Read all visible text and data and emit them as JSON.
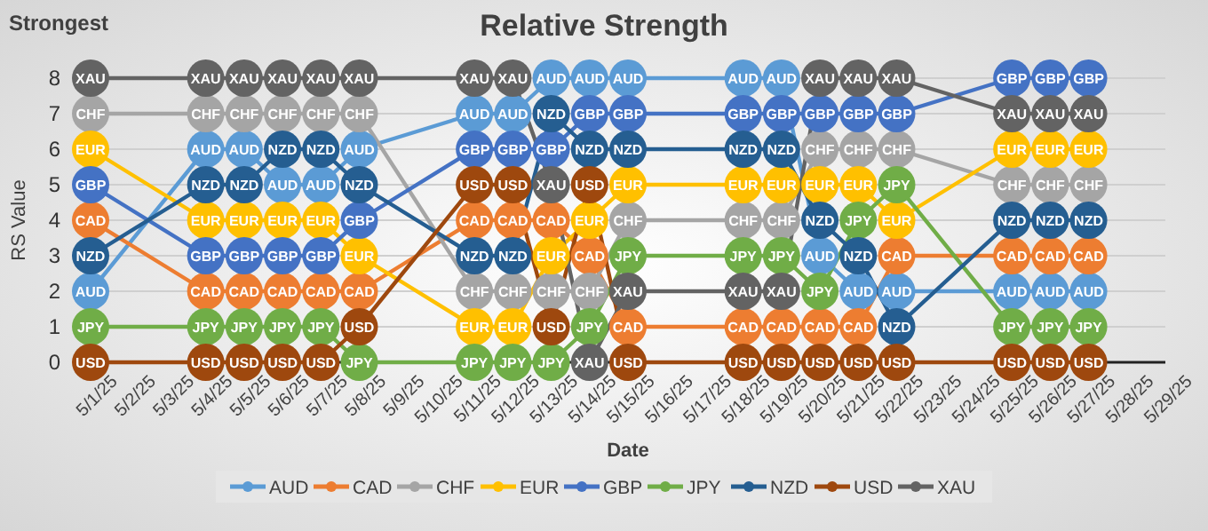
{
  "chart_data": {
    "type": "line",
    "title": "Relative Strength",
    "xlabel": "Date",
    "ylabel": "RS Value",
    "annotations": [
      "Strongest"
    ],
    "x": [
      "--05-01",
      "--05-04",
      "--05-05",
      "--05-06",
      "--05-07",
      "--05-08",
      "--05-11",
      "--05-12",
      "--05-13",
      "--05-14",
      "--05-15",
      "--05-18",
      "--05-19",
      "--05-20",
      "--05-21",
      "--05-22",
      "--05-25",
      "--05-26",
      "--05-27"
    ],
    "series": [
      {
        "name": "AUD",
        "color": "#5b9bd5",
        "values": [
          2,
          6,
          6,
          5,
          5,
          6,
          7,
          7,
          8,
          8,
          8,
          8,
          8,
          3,
          2,
          2,
          2,
          2,
          2
        ]
      },
      {
        "name": "CAD",
        "color": "#ed7d31",
        "values": [
          4,
          2,
          2,
          2,
          2,
          2,
          4,
          4,
          4,
          3,
          1,
          1,
          1,
          1,
          1,
          3,
          3,
          3,
          3
        ]
      },
      {
        "name": "CHF",
        "color": "#a5a5a5",
        "values": [
          7,
          7,
          7,
          7,
          7,
          7,
          2,
          2,
          2,
          2,
          4,
          4,
          4,
          6,
          6,
          6,
          5,
          5,
          5
        ]
      },
      {
        "name": "EUR",
        "color": "#ffc000",
        "values": [
          6,
          4,
          4,
          4,
          4,
          3,
          1,
          1,
          3,
          4,
          5,
          5,
          5,
          5,
          5,
          4,
          6,
          6,
          6
        ]
      },
      {
        "name": "GBP",
        "color": "#4472c4",
        "values": [
          5,
          3,
          3,
          3,
          3,
          4,
          6,
          6,
          6,
          7,
          7,
          7,
          7,
          7,
          7,
          7,
          8,
          8,
          8
        ]
      },
      {
        "name": "JPY",
        "color": "#70ad47",
        "values": [
          1,
          1,
          1,
          1,
          1,
          0,
          0,
          0,
          0,
          1,
          3,
          3,
          3,
          2,
          4,
          5,
          1,
          1,
          1
        ]
      },
      {
        "name": "NZD",
        "color": "#255e91",
        "values": [
          3,
          5,
          5,
          6,
          6,
          5,
          3,
          3,
          7,
          6,
          6,
          6,
          6,
          4,
          3,
          1,
          4,
          4,
          4
        ]
      },
      {
        "name": "USD",
        "color": "#9e480e",
        "values": [
          0,
          0,
          0,
          0,
          0,
          1,
          5,
          5,
          1,
          5,
          0,
          0,
          0,
          0,
          0,
          0,
          0,
          0,
          0
        ]
      },
      {
        "name": "XAU",
        "color": "#636363",
        "values": [
          8,
          8,
          8,
          8,
          8,
          8,
          8,
          8,
          5,
          0,
          2,
          2,
          2,
          8,
          8,
          8,
          7,
          7,
          7
        ]
      }
    ],
    "xlim": [
      "--05-01",
      "--05-29"
    ],
    "xticks": [
      {
        "value": "--05-01",
        "label": "5/1/25"
      },
      {
        "value": "--05-02",
        "label": "5/2/25"
      },
      {
        "value": "--05-03",
        "label": "5/3/25"
      },
      {
        "value": "--05-04",
        "label": "5/4/25"
      },
      {
        "value": "--05-05",
        "label": "5/5/25"
      },
      {
        "value": "--05-06",
        "label": "5/6/25"
      },
      {
        "value": "--05-07",
        "label": "5/7/25"
      },
      {
        "value": "--05-08",
        "label": "5/8/25"
      },
      {
        "value": "--05-09",
        "label": "5/9/25"
      },
      {
        "value": "--05-10",
        "label": "5/10/25"
      },
      {
        "value": "--05-11",
        "label": "5/11/25"
      },
      {
        "value": "--05-12",
        "label": "5/12/25"
      },
      {
        "value": "--05-13",
        "label": "5/13/25"
      },
      {
        "value": "--05-14",
        "label": "5/14/25"
      },
      {
        "value": "--05-15",
        "label": "5/15/25"
      },
      {
        "value": "--05-16",
        "label": "5/16/25"
      },
      {
        "value": "--05-17",
        "label": "5/17/25"
      },
      {
        "value": "--05-18",
        "label": "5/18/25"
      },
      {
        "value": "--05-19",
        "label": "5/19/25"
      },
      {
        "value": "--05-20",
        "label": "5/20/25"
      },
      {
        "value": "--05-21",
        "label": "5/21/25"
      },
      {
        "value": "--05-22",
        "label": "5/22/25"
      },
      {
        "value": "--05-23",
        "label": "5/23/25"
      },
      {
        "value": "--05-24",
        "label": "5/24/25"
      },
      {
        "value": "--05-25",
        "label": "5/25/25"
      },
      {
        "value": "--05-26",
        "label": "5/26/25"
      },
      {
        "value": "--05-27",
        "label": "5/27/25"
      },
      {
        "value": "--05-28",
        "label": "5/28/25"
      },
      {
        "value": "--05-29",
        "label": "5/29/25"
      }
    ],
    "ylim": [
      0,
      8
    ],
    "yticks": [
      0,
      1,
      2,
      3,
      4,
      5,
      6,
      7,
      8
    ],
    "grid": "y",
    "legend": "bottom",
    "marker": "circle",
    "line_style": "solid"
  }
}
